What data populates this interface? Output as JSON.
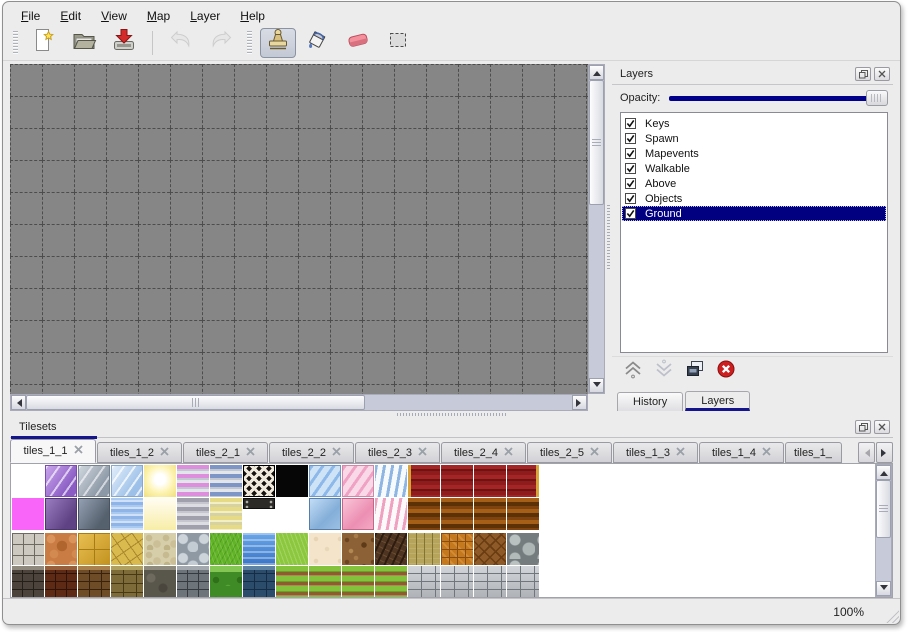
{
  "menu": {
    "items": [
      {
        "label": "File"
      },
      {
        "label": "Edit"
      },
      {
        "label": "View"
      },
      {
        "label": "Map"
      },
      {
        "label": "Layer"
      },
      {
        "label": "Help"
      }
    ]
  },
  "toolbar": {
    "buttons": [
      {
        "name": "new-map",
        "icon": "new-file-icon"
      },
      {
        "name": "open-map",
        "icon": "open-folder-icon"
      },
      {
        "name": "save-map",
        "icon": "save-icon"
      },
      {
        "name": "undo",
        "icon": "undo-icon",
        "disabled": true
      },
      {
        "name": "redo",
        "icon": "redo-icon",
        "disabled": true
      },
      {
        "name": "stamp-tool",
        "icon": "stamp-icon",
        "active": true
      },
      {
        "name": "fill-tool",
        "icon": "fill-icon"
      },
      {
        "name": "eraser-tool",
        "icon": "eraser-icon"
      },
      {
        "name": "select-tool",
        "icon": "select-rect-icon"
      }
    ]
  },
  "layers_panel": {
    "title": "Layers",
    "opacity_label": "Opacity:",
    "opacity_percent": 100,
    "layers": [
      {
        "label": "Keys",
        "checked": true
      },
      {
        "label": "Spawn",
        "checked": true
      },
      {
        "label": "Mapevents",
        "checked": true
      },
      {
        "label": "Walkable",
        "checked": true
      },
      {
        "label": "Above",
        "checked": true
      },
      {
        "label": "Objects",
        "checked": true
      },
      {
        "label": "Ground",
        "checked": true,
        "selected": true
      }
    ],
    "actions": [
      {
        "name": "raise-layer",
        "icon": "chevron-up-icon"
      },
      {
        "name": "lower-layer",
        "icon": "chevron-down-icon",
        "disabled": true
      },
      {
        "name": "duplicate-layer",
        "icon": "duplicate-icon"
      },
      {
        "name": "delete-layer",
        "icon": "delete-icon"
      }
    ],
    "tabs": [
      {
        "label": "History"
      },
      {
        "label": "Layers",
        "active": true
      }
    ]
  },
  "tilesets_panel": {
    "title": "Tilesets",
    "tabs": [
      {
        "label": "tiles_1_1",
        "active": true
      },
      {
        "label": "tiles_1_2"
      },
      {
        "label": "tiles_2_1"
      },
      {
        "label": "tiles_2_2"
      },
      {
        "label": "tiles_2_3"
      },
      {
        "label": "tiles_2_4"
      },
      {
        "label": "tiles_2_5"
      },
      {
        "label": "tiles_1_3"
      },
      {
        "label": "tiles_1_4"
      },
      {
        "label": "tiles_1_",
        "truncated": true
      }
    ],
    "palette_rows": [
      [
        "empty",
        "glass-purple",
        "glass-gray",
        "glass-blue",
        "glow-yellow",
        "stripes-pink",
        "stripes-blue",
        "lattice",
        "black",
        "glass-blue-diag",
        "glass-pink-diag",
        "zigzag-blue",
        "carpet-red-left",
        "carpet-red",
        "carpet-red",
        "carpet-red-right"
      ],
      [
        "magenta",
        "glass-purple-dark",
        "glass-gray-dark",
        "water-shimmer",
        "glow-pale",
        "stripes-gray",
        "stripes-yellow",
        "metal-plate",
        "empty",
        "glass-blue-solid",
        "glass-pink-solid",
        "zigzag-pink",
        "carpet-brown",
        "carpet-brown",
        "carpet-brown",
        "carpet-brown"
      ],
      [
        "stone-blocks",
        "cobble-orange",
        "tile-gold",
        "flagstone",
        "pebble-beige",
        "cobble-gray",
        "grass-green",
        "water",
        "grass-lime",
        "sand",
        "dirt-debris",
        "shingles",
        "planks",
        "weave-orange",
        "herringbone",
        "stone-pile"
      ],
      [
        "wall-dark",
        "wall-redbrick",
        "wall-brownbrick",
        "wall-olive",
        "wall-darkpebble",
        "wall-graybrick",
        "hedge",
        "wall-bluebrick",
        "field-rows",
        "field-rows",
        "field-rows",
        "field-rows",
        "wall-lightbrick",
        "wall-lightbrick",
        "wall-lightbrick",
        "wall-lightbrick"
      ]
    ]
  },
  "canvas": {
    "grid_size": 32
  },
  "statusbar": {
    "zoom_level": "100%"
  },
  "colors": {
    "selection": "#000080",
    "slider_fill": "#00008b",
    "canvas_bg": "#868686"
  }
}
